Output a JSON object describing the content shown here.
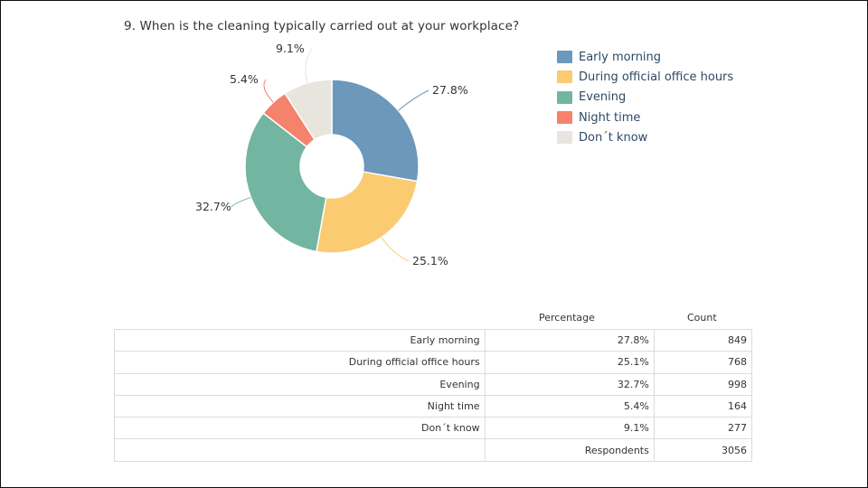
{
  "question": "9. When is the cleaning typically carried out at your workplace?",
  "chart_data": {
    "type": "pie",
    "variant": "donut",
    "categories": [
      "Early morning",
      "During official office hours",
      "Evening",
      "Night time",
      "Don´t know"
    ],
    "values": [
      27.8,
      25.1,
      32.7,
      5.4,
      9.1
    ],
    "data_labels": [
      "27.8%",
      "25.1%",
      "32.7%",
      "5.4%",
      "9.1%"
    ],
    "colors": [
      "#6b98bb",
      "#fbcb71",
      "#72b5a0",
      "#f5836b",
      "#e8e5df"
    ],
    "legend_position": "right"
  },
  "table": {
    "headers": {
      "percentage": "Percentage",
      "count": "Count"
    },
    "rows": [
      {
        "label": "Early morning",
        "percentage": "27.8%",
        "count": "849"
      },
      {
        "label": "During official office hours",
        "percentage": "25.1%",
        "count": "768"
      },
      {
        "label": "Evening",
        "percentage": "32.7%",
        "count": "998"
      },
      {
        "label": "Night time",
        "percentage": "5.4%",
        "count": "164"
      },
      {
        "label": "Don´t know",
        "percentage": "9.1%",
        "count": "277"
      }
    ],
    "respondents": {
      "label": "Respondents",
      "count": "3056"
    }
  }
}
